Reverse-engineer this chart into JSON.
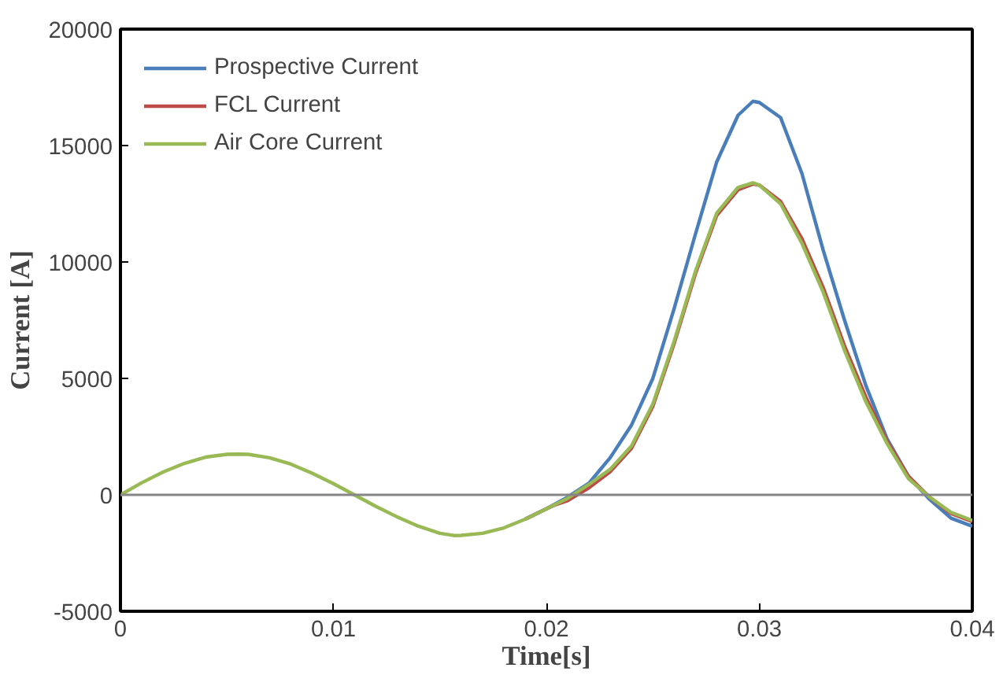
{
  "chart_data": {
    "type": "line",
    "xlabel": "Time[s]",
    "ylabel": "Current [A]",
    "xlim": [
      0,
      0.04
    ],
    "xticks": [
      0,
      0.01,
      0.02,
      0.03,
      0.04
    ],
    "ylim": [
      -5000,
      20000
    ],
    "yticks": [
      -5000,
      0,
      5000,
      10000,
      15000,
      20000
    ],
    "grid": false,
    "legend": "top left",
    "line_style": "solid",
    "marker": "none",
    "ref_lines": [
      {
        "axis": "y",
        "value": 0,
        "label": null,
        "color": "#868686"
      }
    ],
    "series": [
      {
        "name": "Prospective Current",
        "color": "#4a7ebb",
        "x": [
          0.019,
          0.02,
          0.021,
          0.022,
          0.023,
          0.024,
          0.025,
          0.026,
          0.027,
          0.028,
          0.029,
          0.0297,
          0.03,
          0.031,
          0.032,
          0.033,
          0.034,
          0.035,
          0.036,
          0.037,
          0.038,
          0.039,
          0.04
        ],
        "values": [
          -1050,
          -600,
          -100,
          500,
          1600,
          3000,
          5000,
          8000,
          11200,
          14300,
          16300,
          16900,
          16850,
          16200,
          13800,
          10500,
          7500,
          4700,
          2400,
          800,
          -200,
          -1000,
          -1350
        ]
      },
      {
        "name": "FCL Current",
        "color": "#be4b48",
        "x": [
          0.019,
          0.02,
          0.0205,
          0.021,
          0.022,
          0.023,
          0.024,
          0.025,
          0.026,
          0.027,
          0.028,
          0.029,
          0.0297,
          0.03,
          0.031,
          0.032,
          0.033,
          0.034,
          0.035,
          0.036,
          0.037,
          0.038,
          0.039,
          0.04
        ],
        "values": [
          -1050,
          -600,
          -400,
          -250,
          300,
          1000,
          2000,
          3800,
          6500,
          9500,
          12000,
          13100,
          13350,
          13300,
          12600,
          11000,
          8900,
          6400,
          4200,
          2300,
          800,
          -100,
          -800,
          -1150
        ]
      },
      {
        "name": "Air Core Current",
        "color": "#98b954",
        "x": [
          0,
          0.001,
          0.002,
          0.003,
          0.004,
          0.005,
          0.0055,
          0.006,
          0.007,
          0.008,
          0.009,
          0.01,
          0.011,
          0.012,
          0.013,
          0.014,
          0.015,
          0.0157,
          0.016,
          0.017,
          0.018,
          0.019,
          0.02,
          0.021,
          0.022,
          0.023,
          0.024,
          0.025,
          0.026,
          0.027,
          0.028,
          0.029,
          0.0297,
          0.03,
          0.031,
          0.032,
          0.033,
          0.034,
          0.035,
          0.036,
          0.037,
          0.038,
          0.039,
          0.04
        ],
        "values": [
          0,
          520,
          980,
          1350,
          1620,
          1740,
          1750,
          1740,
          1590,
          1320,
          930,
          480,
          -10,
          -500,
          -950,
          -1350,
          -1650,
          -1750,
          -1740,
          -1650,
          -1420,
          -1050,
          -600,
          -150,
          450,
          1100,
          2100,
          3900,
          6600,
          9600,
          12100,
          13200,
          13400,
          13300,
          12500,
          10800,
          8700,
          6200,
          4000,
          2200,
          700,
          -100,
          -750,
          -1100
        ]
      }
    ]
  }
}
